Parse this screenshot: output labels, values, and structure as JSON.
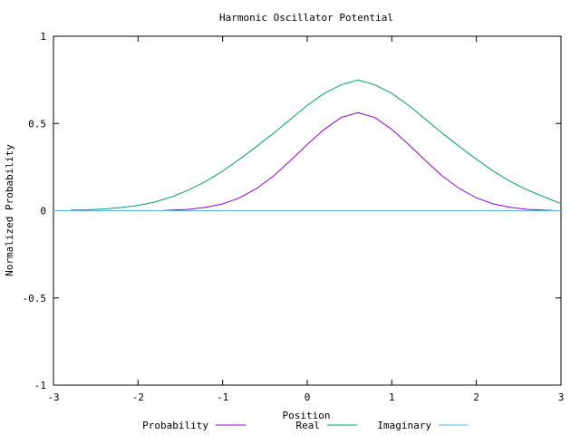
{
  "chart_data": {
    "type": "line",
    "title": "Harmonic Oscillator Potential",
    "xlabel": "Position",
    "ylabel": "Normalized Probability",
    "xlim": [
      -3,
      3
    ],
    "ylim": [
      -1,
      1
    ],
    "xticks": [
      "-3",
      "-2",
      "-1",
      "0",
      "1",
      "2",
      "3"
    ],
    "yticks": [
      "-1",
      "-0.5",
      "0",
      "0.5",
      "1"
    ],
    "legend_position": "bottom",
    "series": [
      {
        "name": "Probability",
        "color": "#9400d3",
        "x": [
          -1.7,
          -1.4,
          -1.2,
          -1.0,
          -0.8,
          -0.6,
          -0.4,
          -0.2,
          0.0,
          0.2,
          0.4,
          0.6,
          0.8,
          1.0,
          1.2,
          1.4,
          1.6,
          1.8,
          2.0,
          2.2,
          2.4,
          2.6,
          2.9
        ],
        "y": [
          0.001,
          0.008,
          0.019,
          0.039,
          0.074,
          0.127,
          0.198,
          0.286,
          0.379,
          0.466,
          0.534,
          0.562,
          0.534,
          0.466,
          0.379,
          0.286,
          0.198,
          0.127,
          0.074,
          0.039,
          0.019,
          0.008,
          0.001
        ]
      },
      {
        "name": "Real",
        "color": "#009e73",
        "x": [
          -2.8,
          -2.6,
          -2.4,
          -2.2,
          -2.0,
          -1.8,
          -1.6,
          -1.4,
          -1.2,
          -1.0,
          -0.8,
          -0.6,
          -0.4,
          -0.2,
          0.0,
          0.2,
          0.4,
          0.6,
          0.8,
          1.0,
          1.2,
          1.4,
          1.6,
          1.8,
          2.0,
          2.2,
          2.4,
          2.6,
          2.8,
          3.0
        ],
        "y": [
          0.003,
          0.005,
          0.01,
          0.018,
          0.03,
          0.05,
          0.08,
          0.119,
          0.168,
          0.227,
          0.295,
          0.368,
          0.443,
          0.523,
          0.603,
          0.672,
          0.721,
          0.75,
          0.721,
          0.672,
          0.603,
          0.523,
          0.443,
          0.368,
          0.295,
          0.227,
          0.168,
          0.119,
          0.08,
          0.04
        ]
      },
      {
        "name": "Imaginary",
        "color": "#56b4e9",
        "x": [
          -3,
          3
        ],
        "y": [
          0,
          0
        ]
      }
    ]
  }
}
